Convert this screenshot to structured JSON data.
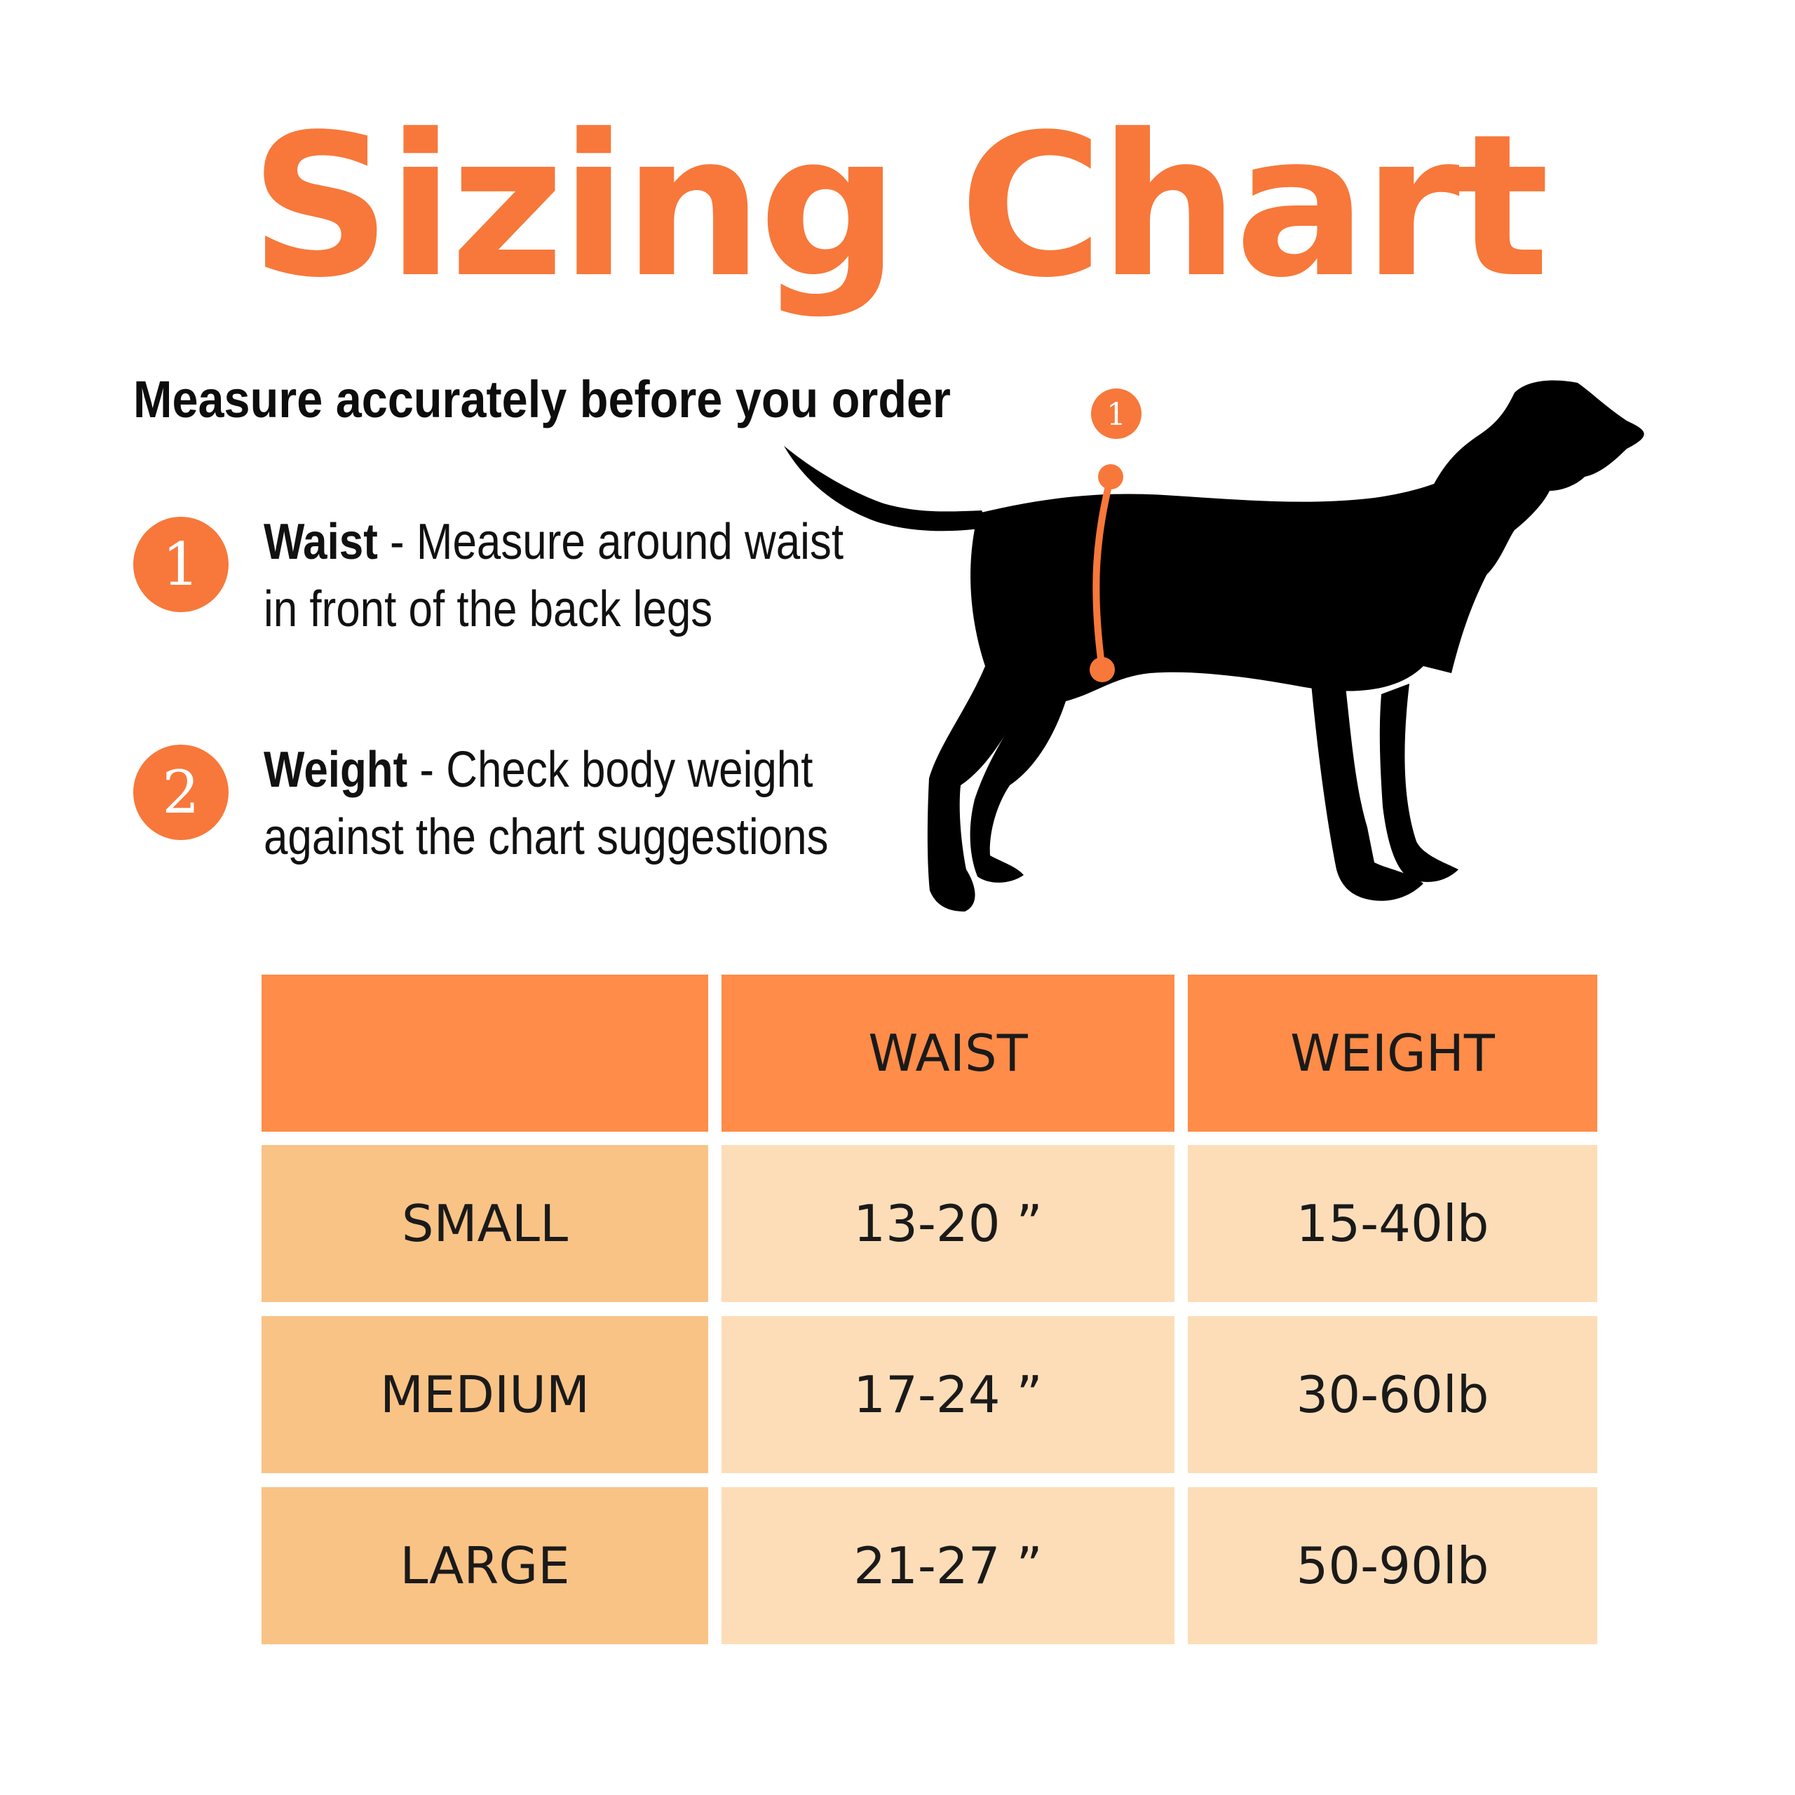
{
  "title": "Sizing Chart",
  "subtitle": "Measure accurately before you order",
  "steps": [
    {
      "number": "1",
      "label": "Waist",
      "separator": " - ",
      "line1": "Measure around waist",
      "line2": "in front of the back legs"
    },
    {
      "number": "2",
      "label": "Weight",
      "separator": " - ",
      "line1": "Check body weight",
      "line2": "against the chart suggestions"
    }
  ],
  "illustration": {
    "marker_number": "1",
    "colors": {
      "silhouette": "#000000",
      "marker": "#F7783A"
    }
  },
  "table": {
    "headers": [
      "",
      "WAIST",
      "WEIGHT"
    ],
    "rows": [
      [
        "SMALL",
        "13-20 ”",
        "15-40lb"
      ],
      [
        "MEDIUM",
        "17-24 ”",
        "30-60lb"
      ],
      [
        "LARGE",
        "21-27 ”",
        "50-90lb"
      ]
    ]
  },
  "colors": {
    "accent": "#F7783A",
    "header_bg": "#FF8C48",
    "row_label_bg": "#F9C386",
    "row_value_bg": "#FDDDB8"
  }
}
